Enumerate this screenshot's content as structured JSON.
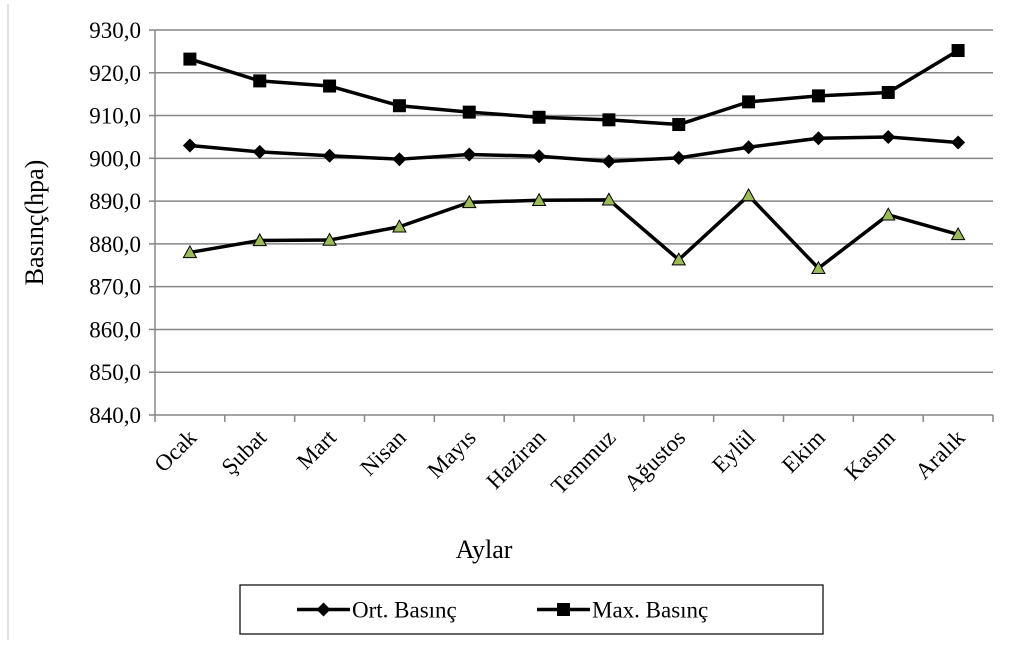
{
  "chart_data": {
    "type": "line",
    "title": "",
    "xlabel": "Aylar",
    "ylabel": "Basınç(hpa)",
    "ylim": [
      840,
      930
    ],
    "y_ticks": [
      "840,0",
      "850,0",
      "860,0",
      "870,0",
      "880,0",
      "890,0",
      "900,0",
      "910,0",
      "920,0",
      "930,0"
    ],
    "grid": "horizontal",
    "legend_position": "bottom",
    "categories": [
      "Ocak",
      "Şubat",
      "Mart",
      "Nisan",
      "Mayıs",
      "Haziran",
      "Temmuz",
      "Ağustos",
      "Eylül",
      "Ekim",
      "Kasım",
      "Aralık"
    ],
    "series": [
      {
        "name": "Ort. Basınç",
        "marker": "diamond",
        "color": "#000000",
        "values": [
          903.0,
          901.5,
          900.6,
          899.8,
          900.9,
          900.5,
          899.3,
          900.1,
          902.6,
          904.7,
          905.0,
          903.7
        ]
      },
      {
        "name": "Max. Basınç",
        "marker": "square",
        "color": "#000000",
        "values": [
          923.2,
          918.1,
          916.9,
          912.3,
          910.8,
          909.6,
          909.0,
          907.9,
          913.2,
          914.6,
          915.4,
          925.2
        ]
      },
      {
        "name": "",
        "marker": "triangle",
        "color": "#000000",
        "marker_fill": "#9bbb59",
        "values": [
          878.0,
          880.8,
          880.9,
          884.0,
          889.7,
          890.2,
          890.3,
          876.3,
          891.3,
          874.3,
          886.8,
          882.2
        ]
      }
    ]
  },
  "legend": {
    "items": [
      "Ort. Basınç",
      "Max. Basınç"
    ]
  }
}
